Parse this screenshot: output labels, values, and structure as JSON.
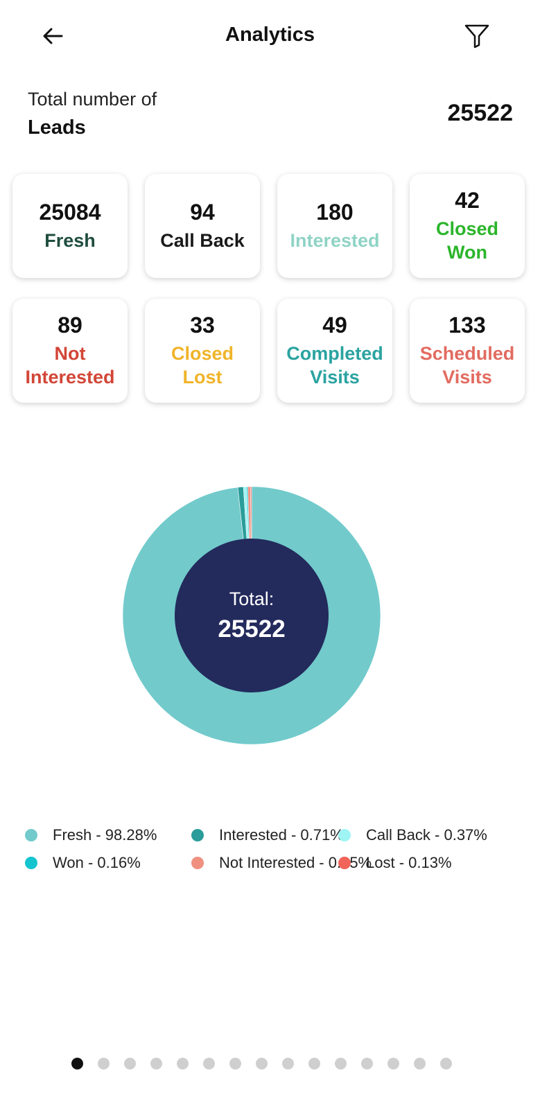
{
  "header": {
    "title": "Analytics",
    "back_icon": "arrow-left-icon",
    "filter_icon": "filter-icon"
  },
  "summary": {
    "line1": "Total number of",
    "line2": "Leads",
    "total": "25522"
  },
  "cards": [
    {
      "value": "25084",
      "label": "Fresh",
      "color": "#1f4d3f"
    },
    {
      "value": "94",
      "label": "Call Back",
      "color": "#1a1a1a"
    },
    {
      "value": "180",
      "label": "Interested",
      "color": "#8fd3c5"
    },
    {
      "value": "42",
      "label": "Closed Won",
      "color": "#2bb52b"
    },
    {
      "value": "89",
      "label": "Not Interested",
      "color": "#d24637"
    },
    {
      "value": "33",
      "label": "Closed Lost",
      "color": "#f0b429"
    },
    {
      "value": "49",
      "label": "Completed Visits",
      "color": "#2aa3a0"
    },
    {
      "value": "133",
      "label": "Scheduled Visits",
      "color": "#e26b60"
    }
  ],
  "chart_data": {
    "type": "pie",
    "categories": [
      "Fresh",
      "Interested",
      "Call Back",
      "Won",
      "Not Interested",
      "Lost"
    ],
    "values": [
      98.28,
      0.71,
      0.37,
      0.16,
      0.35,
      0.13
    ],
    "colors": [
      "#72cacb",
      "#2a9d9a",
      "#9ff4f4",
      "#14c4cf",
      "#f09080",
      "#f0645a"
    ],
    "center_label": "Total:",
    "center_value": "25522",
    "center_color": "#232a5c",
    "legend_placement": "bottom"
  },
  "legend": [
    {
      "text": "Fresh - 98.28%",
      "color": "#72cacb"
    },
    {
      "text": "Interested - 0.71%",
      "color": "#2a9d9a"
    },
    {
      "text": "Call Back - 0.37%",
      "color": "#9ff4f4"
    },
    {
      "text": "Won - 0.16%",
      "color": "#14c4cf"
    },
    {
      "text": "Not Interested - 0.35%",
      "color": "#f09080"
    },
    {
      "text": "Lost - 0.13%",
      "color": "#f0645a"
    }
  ],
  "pager": {
    "count": 15,
    "active": 0
  }
}
